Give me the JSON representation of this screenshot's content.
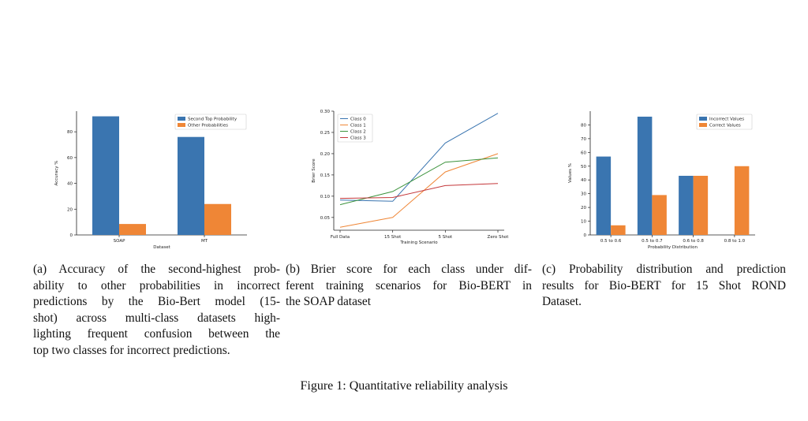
{
  "figure_caption": "Figure 1: Quantitative reliability analysis",
  "captions": {
    "a": [
      "(a) Accuracy of the second-highest prob-",
      "ability to other probabilities in incorrect",
      "predictions by the Bio-Bert model (15-",
      "shot) across multi-class datasets high-",
      "lighting frequent confusion between the",
      "top two classes for incorrect predictions."
    ],
    "b": [
      "(b) Brier score for each class under dif-",
      "ferent training scenarios for Bio-BERT in",
      "the SOAP dataset"
    ],
    "c": [
      "(c) Probability distribution and prediction",
      "results for Bio-BERT for 15 Shot ROND",
      "Dataset."
    ]
  },
  "chart_data": [
    {
      "id": "a",
      "type": "bar",
      "categories": [
        "SOAP",
        "MT"
      ],
      "series": [
        {
          "name": "Second Top Probability",
          "values": [
            92,
            76
          ],
          "color": "#3a75b0"
        },
        {
          "name": "Other Probabilities",
          "values": [
            8.5,
            24
          ],
          "color": "#ef8636"
        }
      ],
      "xlabel": "Dataset",
      "ylabel": "Accuracy %",
      "ylim": [
        0,
        96
      ],
      "yticks": [
        0,
        20,
        40,
        60,
        80
      ],
      "legend": "top-right",
      "grid": false
    },
    {
      "id": "b",
      "type": "line",
      "categories": [
        "Full Data",
        "15 Shot",
        "5 Shot",
        "Zero Shot"
      ],
      "series": [
        {
          "name": "Class 0",
          "values": [
            0.091,
            0.088,
            0.225,
            0.295
          ],
          "color": "#3a75b0"
        },
        {
          "name": "Class 1",
          "values": [
            0.027,
            0.05,
            0.157,
            0.2
          ],
          "color": "#ef8636"
        },
        {
          "name": "Class 2",
          "values": [
            0.08,
            0.111,
            0.18,
            0.19
          ],
          "color": "#3b923b"
        },
        {
          "name": "Class 3",
          "values": [
            0.095,
            0.097,
            0.125,
            0.13
          ],
          "color": "#c4373a"
        }
      ],
      "xlabel": "Training Scenario",
      "ylabel": "Brier Score",
      "ylim": [
        0.02,
        0.3
      ],
      "yticks": [
        0.05,
        0.1,
        0.15,
        0.2,
        0.25,
        0.3
      ],
      "ytick_labels": [
        "0.05",
        "0.10",
        "0.15",
        "0.20",
        "0.25",
        "0.30"
      ],
      "legend": "top-left",
      "grid": false
    },
    {
      "id": "c",
      "type": "bar",
      "categories": [
        "0.5 to 0.6",
        "0.5 to 0.7",
        "0.6 to 0.8",
        "0.8 to 1.0"
      ],
      "series": [
        {
          "name": "Incorrect Values",
          "values": [
            57,
            86,
            43,
            0
          ],
          "color": "#3a75b0"
        },
        {
          "name": "Correct Values",
          "values": [
            7,
            29,
            43,
            50
          ],
          "color": "#ef8636"
        }
      ],
      "xlabel": "Probability Distribution",
      "ylabel": "Values %",
      "ylim": [
        0,
        90
      ],
      "yticks": [
        0,
        10,
        20,
        30,
        40,
        50,
        60,
        70,
        80
      ],
      "legend": "top-right",
      "grid": false
    }
  ]
}
